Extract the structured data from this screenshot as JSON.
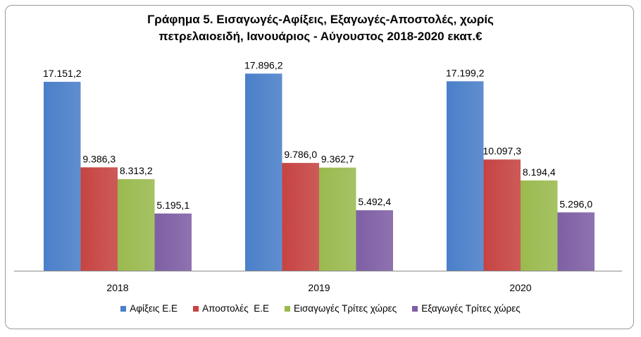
{
  "chart_data": {
    "type": "bar",
    "title_line1": "Γράφημα 5. Εισαγωγές-Αφίξεις, Εξαγωγές-Αποστολές, χωρίς",
    "title_line2": "πετρελαιοειδή, Ιανουάριος - Αύγουστος 2018-2020 εκατ.€",
    "categories": [
      "2018",
      "2019",
      "2020"
    ],
    "series": [
      {
        "name": "Αφίξεις Ε.Ε",
        "color": "#4a7fc9",
        "values": [
          17151.2,
          17896.2,
          17199.2
        ],
        "labels": [
          "17.151,2",
          "17.896,2",
          "17.199,2"
        ]
      },
      {
        "name": "Αποστολές  Ε.Ε",
        "color": "#c64442",
        "values": [
          9386.3,
          9786.0,
          10097.3
        ],
        "labels": [
          "9.386,3",
          "9.786,0",
          "10.097,3"
        ]
      },
      {
        "name": "Εισαγωγές Τρίτες χώρες",
        "color": "#9aba4f",
        "values": [
          8313.2,
          9362.7,
          8194.4
        ],
        "labels": [
          "8.313,2",
          "9.362,7",
          "8.194,4"
        ]
      },
      {
        "name": "Εξαγωγές Τρίτες χώρες",
        "color": "#7f5fa5",
        "values": [
          5195.1,
          5492.4,
          5296.0
        ],
        "labels": [
          "5.195,1",
          "5.492,4",
          "5.296,0"
        ]
      }
    ],
    "ylim": [
      0,
      18000
    ],
    "grid": false,
    "legend_position": "bottom"
  }
}
